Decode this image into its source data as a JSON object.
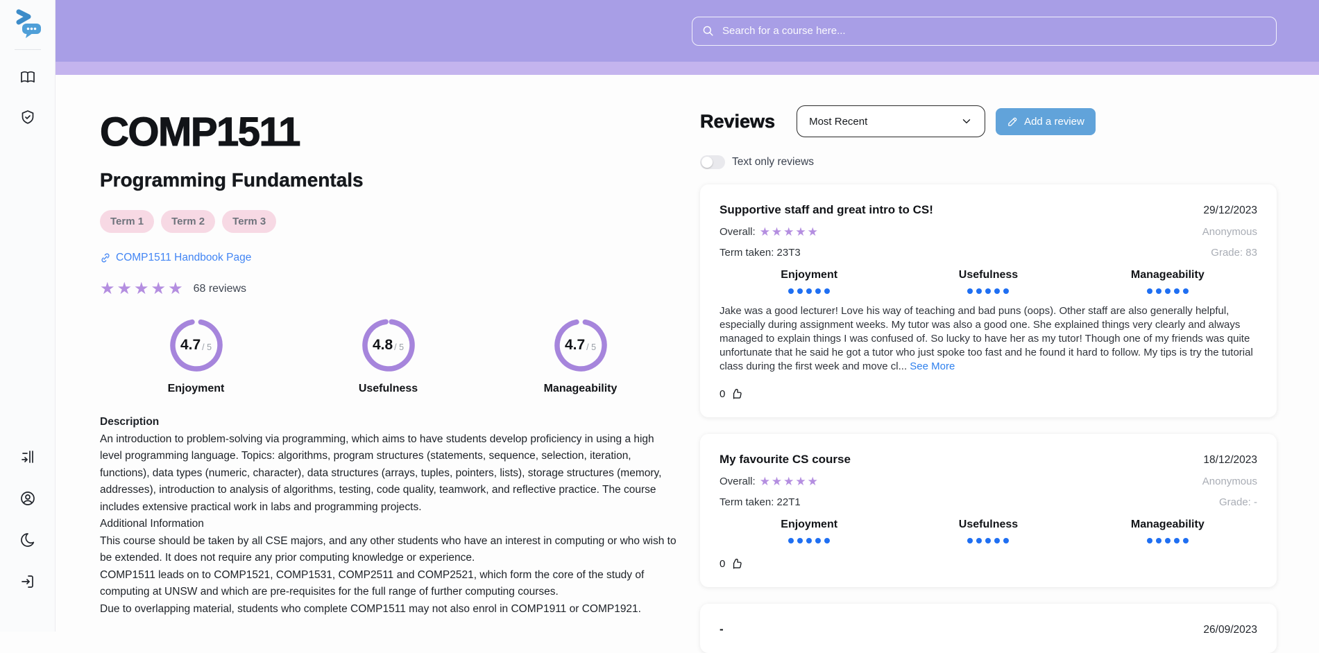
{
  "colors": {
    "header_purple": "#a89ee6",
    "header_strip": "#c4b4ee",
    "gauge_purple": "#a685dc",
    "star_purple": "#b48ee0",
    "dot_blue": "#1f6ff2",
    "link_blue": "#4285f4",
    "button_blue": "#61a3da",
    "chip_pink": "#f7d9e4"
  },
  "icons": {
    "logo": "unilectives-chat-logo",
    "search": "magnifier-icon",
    "sidebar": [
      "book-icon",
      "shield-check-icon",
      "arrow-bar-right-icon",
      "user-circle-icon",
      "moon-icon",
      "login-icon"
    ],
    "add_review": "edit-pencil-icon",
    "handbook": "link-chain-icon",
    "like": "thumbs-up-icon"
  },
  "search": {
    "placeholder": "Search for a course here..."
  },
  "course": {
    "code": "COMP1511",
    "name": "Programming Fundamentals",
    "terms": {
      "0": "Term 1",
      "1": "Term 2",
      "2": "Term 3"
    },
    "handbook_link": "COMP1511 Handbook Page",
    "rating_stars": "★★★★★",
    "review_count": "68 reviews",
    "gauges": {
      "0": {
        "value": "4.7",
        "suffix": "/ 5",
        "label": "Enjoyment",
        "pct": 94
      },
      "1": {
        "value": "4.8",
        "suffix": "/ 5",
        "label": "Usefulness",
        "pct": 96
      },
      "2": {
        "value": "4.7",
        "suffix": "/ 5",
        "label": "Manageability",
        "pct": 94
      }
    },
    "description_heading": "Description",
    "description": {
      "p1": "An introduction to problem-solving via programming, which aims to have students develop proficiency in using a high level programming language. Topics: algorithms, program structures (statements, sequence, selection, iteration, functions), data types (numeric, character), data structures (arrays, tuples, pointers, lists), storage structures (memory, addresses), introduction to analysis of algorithms, testing, code quality, teamwork, and reflective practice. The course includes extensive practical work in labs and programming projects.",
      "p2": "Additional Information",
      "p3": "This course should be taken by all CSE majors, and any other students who have an interest in computing or who wish to be extended. It does not require any prior computing knowledge or experience.",
      "p4": "COMP1511 leads on to COMP1521, COMP1531, COMP2511 and COMP2521, which form the core of the study of computing at UNSW and which are pre-requisites for the full range of further computing courses.",
      "p5": "Due to overlapping material, students who complete COMP1511 may not also enrol in COMP1911 or COMP1921."
    }
  },
  "reviews_panel": {
    "heading": "Reviews",
    "sort_selected": "Most Recent",
    "add_review_label": "Add a review",
    "text_only_label": "Text only reviews",
    "toggle_state": "off",
    "cards": {
      "0": {
        "title": "Supportive staff and great intro to CS!",
        "date": "29/12/2023",
        "overall_label": "Overall:",
        "overall_stars": "★★★★★",
        "author": "Anonymous",
        "term_taken": "Term taken: 23T3",
        "grade": "Grade: 83",
        "categories": {
          "0": {
            "label": "Enjoyment",
            "dots": 5
          },
          "1": {
            "label": "Usefulness",
            "dots": 5
          },
          "2": {
            "label": "Manageability",
            "dots": 5
          }
        },
        "body": "Jake was a good lecturer! Love his way of teaching and bad puns (oops). Other staff are also generally helpful, especially during assignment weeks. My tutor was also a good one. She explained things very clearly and always managed to explain things I was confused of. So lucky to have her as my tutor! Though one of my friends was quite unfortunate that he said he got a tutor who just spoke too fast and he found it hard to follow. My tips is try the tutorial class during the first week and move cl...",
        "see_more": "See More",
        "likes": "0"
      },
      "1": {
        "title": "My favourite CS course",
        "date": "18/12/2023",
        "overall_label": "Overall:",
        "overall_stars": "★★★★★",
        "author": "Anonymous",
        "term_taken": "Term taken: 22T1",
        "grade": "Grade: -",
        "categories": {
          "0": {
            "label": "Enjoyment",
            "dots": 5
          },
          "1": {
            "label": "Usefulness",
            "dots": 5
          },
          "2": {
            "label": "Manageability",
            "dots": 5
          }
        },
        "likes": "0"
      },
      "2": {
        "title": "-",
        "date": "26/09/2023"
      }
    }
  }
}
